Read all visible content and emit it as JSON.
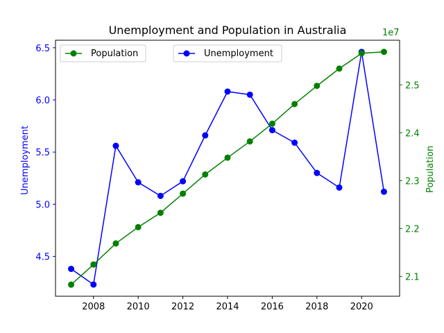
{
  "chart_data": {
    "type": "line",
    "title": "Unemployment and Population in Australia",
    "x": [
      2007,
      2008,
      2009,
      2010,
      2011,
      2012,
      2013,
      2014,
      2015,
      2016,
      2017,
      2018,
      2019,
      2020,
      2021
    ],
    "x_ticks": [
      2008,
      2010,
      2012,
      2014,
      2016,
      2018,
      2020
    ],
    "xlim": [
      2006.3,
      2021.7
    ],
    "series": [
      {
        "name": "Unemployment",
        "axis": "left",
        "color": "#0000ff",
        "values": [
          4.38,
          4.23,
          5.56,
          5.21,
          5.08,
          5.22,
          5.66,
          6.08,
          6.05,
          5.71,
          5.59,
          5.3,
          5.16,
          6.46,
          5.12
        ]
      },
      {
        "name": "Population",
        "axis": "right",
        "color": "#008000",
        "values": [
          20830000,
          21250000,
          21690000,
          22030000,
          22330000,
          22730000,
          23130000,
          23480000,
          23820000,
          24190000,
          24600000,
          24980000,
          25340000,
          25660000,
          25690000
        ]
      }
    ],
    "y_left": {
      "label": "Unemployment",
      "color": "#0000ff",
      "ylim": [
        4.118,
        6.572
      ],
      "ticks": [
        "4.5",
        "5.0",
        "5.5",
        "6.0",
        "6.5"
      ],
      "tick_values": [
        4.5,
        5.0,
        5.5,
        6.0,
        6.5
      ]
    },
    "y_right": {
      "label": "Population",
      "color": "#008000",
      "offset_text": "1e7",
      "ylim": [
        20588000,
        25932000
      ],
      "ticks": [
        "2.1",
        "2.2",
        "2.3",
        "2.4",
        "2.5"
      ],
      "tick_values": [
        21000000,
        22000000,
        23000000,
        24000000,
        25000000
      ]
    },
    "legends": [
      {
        "label": "Population",
        "placement": "upper left",
        "color": "#008000"
      },
      {
        "label": "Unemployment",
        "placement": "upper center",
        "color": "#0000ff"
      }
    ],
    "grid": false
  }
}
